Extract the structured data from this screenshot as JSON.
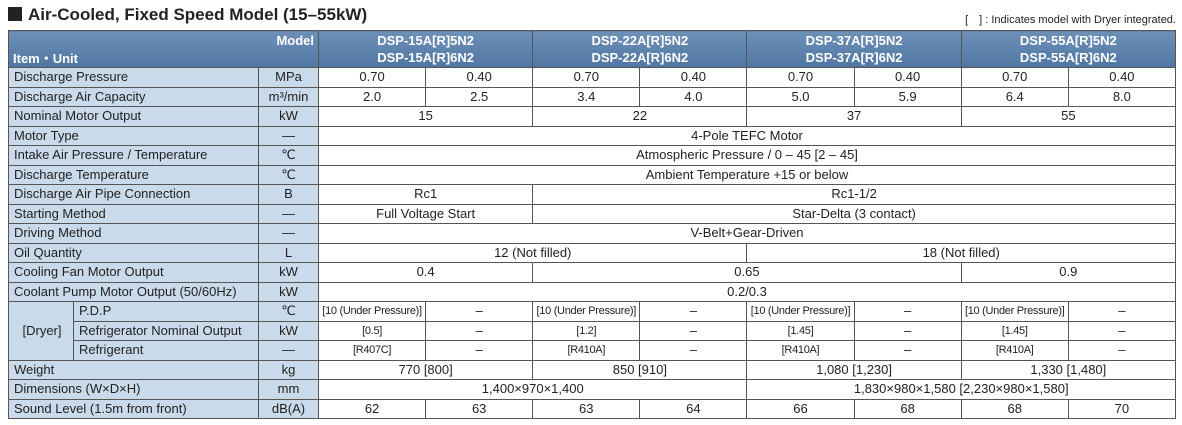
{
  "header": {
    "title": "Air-Cooled, Fixed Speed Model (15–55kW)",
    "note": "[　] : Indicates model with Dryer integrated."
  },
  "table": {
    "model_label": "Model",
    "item_unit_label": "Item・Unit",
    "models": [
      [
        "DSP-15A[R]5N2",
        "DSP-15A[R]6N2"
      ],
      [
        "DSP-22A[R]5N2",
        "DSP-22A[R]6N2"
      ],
      [
        "DSP-37A[R]5N2",
        "DSP-37A[R]6N2"
      ],
      [
        "DSP-55A[R]5N2",
        "DSP-55A[R]6N2"
      ]
    ],
    "group_label": "[Dryer]",
    "rows": [
      {
        "item": "Discharge Pressure",
        "unit": "MPa",
        "cells": [
          "0.70",
          "0.40",
          "0.70",
          "0.40",
          "0.70",
          "0.40",
          "0.70",
          "0.40"
        ]
      },
      {
        "item": "Discharge Air Capacity",
        "unit": "m³/min",
        "cells": [
          "2.0",
          "2.5",
          "3.4",
          "4.0",
          "5.0",
          "5.9",
          "6.4",
          "8.0"
        ]
      },
      {
        "item": "Nominal Motor Output",
        "unit": "kW",
        "cells": [
          "15",
          "22",
          "37",
          "55"
        ]
      },
      {
        "item": "Motor Type",
        "unit": "—",
        "cells": [
          "4-Pole TEFC Motor"
        ]
      },
      {
        "item": "Intake Air Pressure / Temperature",
        "unit": "℃",
        "cells": [
          "Atmospheric Pressure / 0 – 45 [2 – 45]"
        ]
      },
      {
        "item": "Discharge Temperature",
        "unit": "℃",
        "cells": [
          "Ambient Temperature +15 or below"
        ]
      },
      {
        "item": "Discharge Air Pipe Connection",
        "unit": "B",
        "cells": [
          "Rc1",
          "Rc1-1/2"
        ]
      },
      {
        "item": "Starting Method",
        "unit": "—",
        "cells": [
          "Full Voltage Start",
          "Star-Delta (3 contact)"
        ]
      },
      {
        "item": "Driving Method",
        "unit": "—",
        "cells": [
          "V-Belt+Gear-Driven"
        ]
      },
      {
        "item": "Oil Quantity",
        "unit": "L",
        "cells": [
          "12 (Not filled)",
          "18 (Not filled)"
        ]
      },
      {
        "item": "Cooling Fan Motor Output",
        "unit": "kW",
        "cells": [
          "0.4",
          "0.65",
          "0.9"
        ]
      },
      {
        "item": "Coolant Pump Motor Output (50/60Hz)",
        "unit": "kW",
        "cells": [
          "0.2/0.3"
        ]
      },
      {
        "item": "P.D.P",
        "unit": "℃",
        "cells": [
          "[10 (Under Pressure)]",
          "–",
          "[10 (Under Pressure)]",
          "–",
          "[10 (Under Pressure)]",
          "–",
          "[10 (Under Pressure)]",
          "–"
        ]
      },
      {
        "item": "Refrigerator Nominal Output",
        "unit": "kW",
        "cells": [
          "[0.5]",
          "–",
          "[1.2]",
          "–",
          "[1.45]",
          "–",
          "[1.45]",
          "–"
        ]
      },
      {
        "item": "Refrigerant",
        "unit": "—",
        "cells": [
          "[R407C]",
          "–",
          "[R410A]",
          "–",
          "[R410A]",
          "–",
          "[R410A]",
          "–"
        ]
      },
      {
        "item": "Weight",
        "unit": "kg",
        "cells": [
          "770 [800]",
          "850 [910]",
          "1,080 [1,230]",
          "1,330 [1,480]"
        ]
      },
      {
        "item": "Dimensions (W×D×H)",
        "unit": "mm",
        "cells": [
          "1,400×970×1,400",
          "1,830×980×1,580 [2,230×980×1,580]"
        ]
      },
      {
        "item": "Sound Level (1.5m from front)",
        "unit": "dB(A)",
        "cells": [
          "62",
          "63",
          "63",
          "64",
          "66",
          "68",
          "68",
          "70"
        ]
      }
    ]
  }
}
